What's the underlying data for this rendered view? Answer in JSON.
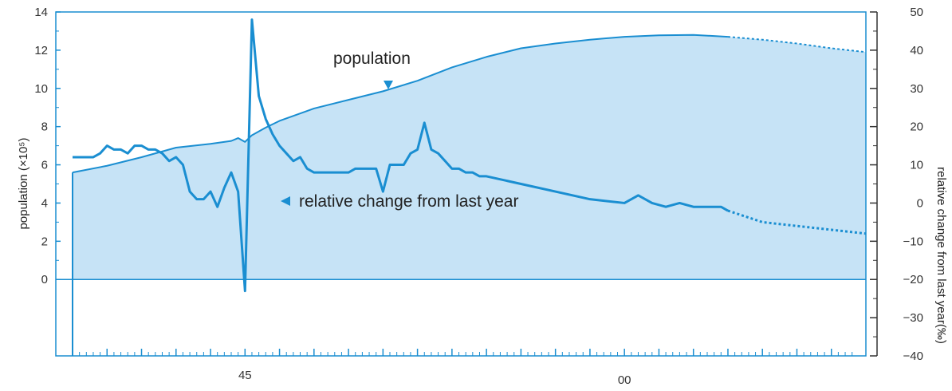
{
  "chart_data": {
    "type": "area",
    "ylabel_left": "population (×10⁵)",
    "ylabel_right": "relative change from last year(‰)",
    "left_yticks": [
      "14",
      "12",
      "10",
      "8",
      "6",
      "4",
      "2",
      "0"
    ],
    "right_yticks": [
      "50",
      "40",
      "30",
      "20",
      "10",
      "0",
      "−10",
      "−20",
      "−30",
      "−40"
    ],
    "x_ticks": [
      {
        "label": "45",
        "x": 1945
      },
      {
        "label": "00",
        "x": 2000
      }
    ],
    "left_ylim": [
      -4,
      14
    ],
    "right_ylim": [
      -40,
      50
    ],
    "xlim": [
      1920,
      2035
    ],
    "annotations": {
      "population": "population",
      "relative_change": "relative change from last year"
    },
    "colors": {
      "fill": "#c6e3f6",
      "line": "#1a8ed1",
      "frame": "#1a8ed1",
      "text": "#222222"
    },
    "series": [
      {
        "name": "population",
        "x": [
          1920,
          1925,
          1930,
          1935,
          1940,
          1943,
          1944,
          1945,
          1946,
          1948,
          1950,
          1955,
          1960,
          1965,
          1970,
          1975,
          1980,
          1985,
          1990,
          1995,
          2000,
          2005,
          2010,
          2015,
          2020,
          2025,
          2030,
          2035
        ],
        "y": [
          5.6,
          5.95,
          6.4,
          6.9,
          7.1,
          7.25,
          7.4,
          7.2,
          7.55,
          7.95,
          8.3,
          8.95,
          9.4,
          9.85,
          10.4,
          11.1,
          11.65,
          12.1,
          12.35,
          12.55,
          12.7,
          12.78,
          12.8,
          12.7,
          12.55,
          12.35,
          12.1,
          11.9
        ],
        "projected_from": 2015
      },
      {
        "name": "relative change from last year",
        "x": [
          1920,
          1921,
          1922,
          1923,
          1924,
          1925,
          1926,
          1927,
          1928,
          1929,
          1930,
          1931,
          1932,
          1933,
          1934,
          1935,
          1936,
          1937,
          1938,
          1939,
          1940,
          1941,
          1942,
          1943,
          1944,
          1945,
          1946,
          1947,
          1948,
          1949,
          1950,
          1951,
          1952,
          1953,
          1954,
          1955,
          1956,
          1957,
          1958,
          1959,
          1960,
          1961,
          1962,
          1963,
          1964,
          1965,
          1966,
          1967,
          1968,
          1969,
          1970,
          1971,
          1972,
          1973,
          1974,
          1975,
          1976,
          1977,
          1978,
          1979,
          1980,
          1985,
          1990,
          1995,
          2000,
          2002,
          2004,
          2006,
          2008,
          2010,
          2012,
          2014,
          2015,
          2020,
          2025,
          2030,
          2035
        ],
        "y": [
          12,
          12,
          12,
          12,
          13,
          15,
          14,
          14,
          13,
          15,
          15,
          14,
          14,
          13,
          11,
          12,
          10,
          3,
          1,
          1,
          3,
          -1,
          4,
          8,
          3,
          -23,
          48,
          28,
          22,
          18,
          15,
          13,
          11,
          12,
          9,
          8,
          8,
          8,
          8,
          8,
          8,
          9,
          9,
          9,
          9,
          3,
          10,
          10,
          10,
          13,
          14,
          21,
          14,
          13,
          11,
          9,
          9,
          8,
          8,
          7,
          7,
          5,
          3,
          1,
          0,
          2,
          0,
          -1,
          0,
          -1,
          -1,
          -1,
          -2,
          -5,
          -6,
          -7,
          -8
        ],
        "projected_from": 2015
      }
    ]
  }
}
